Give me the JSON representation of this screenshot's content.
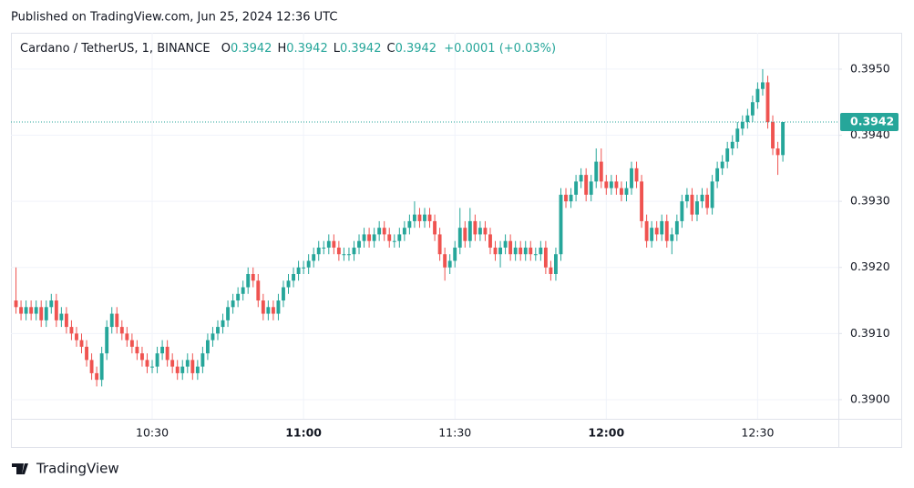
{
  "page": {
    "published": "Published on TradingView.com, Jun 25, 2024 12:36 UTC",
    "brand": "TradingView"
  },
  "chart_data": {
    "type": "candlestick",
    "symbol": "Cardano / TetherUS, 1, BINANCE",
    "ohlc_labels": [
      "O",
      "H",
      "L",
      "C"
    ],
    "ohlc_values": [
      0.3942,
      0.3942,
      0.3942,
      0.3942
    ],
    "change": "+0.0001 (+0.03%)",
    "last_price": 0.3942,
    "up_color": "#26a69a",
    "down_color": "#ef5350",
    "grid": true,
    "xlim": [
      "10:02",
      "12:46"
    ],
    "xticks": [
      "10:30",
      "11:00",
      "11:30",
      "12:00",
      "12:30"
    ],
    "ylim": [
      0.38971,
      0.39555
    ],
    "yticks": [
      {
        "value": 0.39,
        "label": "0.3900"
      },
      {
        "value": 0.391,
        "label": "0.3910"
      },
      {
        "value": 0.392,
        "label": "0.3920"
      },
      {
        "value": 0.393,
        "label": "0.3930"
      },
      {
        "value": 0.394,
        "label": "0.3940"
      },
      {
        "value": 0.395,
        "label": "0.3950"
      }
    ],
    "x": [
      "10:03",
      "10:04",
      "10:05",
      "10:06",
      "10:07",
      "10:08",
      "10:09",
      "10:10",
      "10:11",
      "10:12",
      "10:13",
      "10:14",
      "10:15",
      "10:16",
      "10:17",
      "10:18",
      "10:19",
      "10:20",
      "10:21",
      "10:22",
      "10:23",
      "10:24",
      "10:25",
      "10:26",
      "10:27",
      "10:28",
      "10:29",
      "10:30",
      "10:31",
      "10:32",
      "10:33",
      "10:34",
      "10:35",
      "10:36",
      "10:37",
      "10:38",
      "10:39",
      "10:40",
      "10:41",
      "10:42",
      "10:43",
      "10:44",
      "10:45",
      "10:46",
      "10:47",
      "10:48",
      "10:49",
      "10:50",
      "10:51",
      "10:52",
      "10:53",
      "10:54",
      "10:55",
      "10:56",
      "10:57",
      "10:58",
      "10:59",
      "11:00",
      "11:01",
      "11:02",
      "11:03",
      "11:04",
      "11:05",
      "11:06",
      "11:07",
      "11:08",
      "11:09",
      "11:10",
      "11:11",
      "11:12",
      "11:13",
      "11:14",
      "11:15",
      "11:16",
      "11:17",
      "11:18",
      "11:19",
      "11:20",
      "11:21",
      "11:22",
      "11:23",
      "11:24",
      "11:25",
      "11:26",
      "11:27",
      "11:28",
      "11:29",
      "11:30",
      "11:31",
      "11:32",
      "11:33",
      "11:34",
      "11:35",
      "11:36",
      "11:37",
      "11:38",
      "11:39",
      "11:40",
      "11:41",
      "11:42",
      "11:43",
      "11:44",
      "11:45",
      "11:46",
      "11:47",
      "11:48",
      "11:49",
      "11:50",
      "11:51",
      "11:52",
      "11:53",
      "11:54",
      "11:55",
      "11:56",
      "11:57",
      "11:58",
      "11:59",
      "12:00",
      "12:01",
      "12:02",
      "12:03",
      "12:04",
      "12:05",
      "12:06",
      "12:07",
      "12:08",
      "12:09",
      "12:10",
      "12:11",
      "12:12",
      "12:13",
      "12:14",
      "12:15",
      "12:16",
      "12:17",
      "12:18",
      "12:19",
      "12:20",
      "12:21",
      "12:22",
      "12:23",
      "12:24",
      "12:25",
      "12:26",
      "12:27",
      "12:28",
      "12:29",
      "12:30",
      "12:31",
      "12:32",
      "12:33",
      "12:34",
      "12:35"
    ],
    "ohlc": [
      [
        0.3915,
        0.392,
        0.3913,
        0.3914
      ],
      [
        0.3914,
        0.3915,
        0.3912,
        0.3913
      ],
      [
        0.3913,
        0.3915,
        0.3912,
        0.3914
      ],
      [
        0.3914,
        0.3915,
        0.3912,
        0.3913
      ],
      [
        0.3913,
        0.3915,
        0.3912,
        0.3914
      ],
      [
        0.3914,
        0.3915,
        0.3911,
        0.3912
      ],
      [
        0.3912,
        0.3915,
        0.3911,
        0.3914
      ],
      [
        0.3914,
        0.3916,
        0.3913,
        0.3915
      ],
      [
        0.3915,
        0.3916,
        0.3911,
        0.3912
      ],
      [
        0.3912,
        0.3914,
        0.3911,
        0.3913
      ],
      [
        0.3913,
        0.3914,
        0.391,
        0.3911
      ],
      [
        0.3911,
        0.3912,
        0.3909,
        0.391
      ],
      [
        0.391,
        0.3911,
        0.3908,
        0.3909
      ],
      [
        0.3909,
        0.391,
        0.3907,
        0.3908
      ],
      [
        0.3908,
        0.3909,
        0.3905,
        0.3906
      ],
      [
        0.3906,
        0.3907,
        0.3903,
        0.3904
      ],
      [
        0.3904,
        0.3905,
        0.3902,
        0.3903
      ],
      [
        0.3903,
        0.3908,
        0.3902,
        0.3907
      ],
      [
        0.3907,
        0.3912,
        0.3906,
        0.3911
      ],
      [
        0.3911,
        0.3914,
        0.391,
        0.3913
      ],
      [
        0.3913,
        0.3914,
        0.391,
        0.3911
      ],
      [
        0.3911,
        0.3912,
        0.3909,
        0.391
      ],
      [
        0.391,
        0.3911,
        0.3908,
        0.3909
      ],
      [
        0.3909,
        0.391,
        0.3907,
        0.3908
      ],
      [
        0.3908,
        0.3909,
        0.3906,
        0.3907
      ],
      [
        0.3907,
        0.3908,
        0.3905,
        0.3906
      ],
      [
        0.3906,
        0.3907,
        0.3904,
        0.3905
      ],
      [
        0.3905,
        0.3906,
        0.3904,
        0.3905
      ],
      [
        0.3905,
        0.3908,
        0.3904,
        0.3907
      ],
      [
        0.3907,
        0.3909,
        0.3906,
        0.3908
      ],
      [
        0.3908,
        0.3909,
        0.3905,
        0.3906
      ],
      [
        0.3906,
        0.3907,
        0.3904,
        0.3905
      ],
      [
        0.3905,
        0.3906,
        0.3903,
        0.3904
      ],
      [
        0.3904,
        0.3906,
        0.3903,
        0.3905
      ],
      [
        0.3905,
        0.3907,
        0.3904,
        0.3906
      ],
      [
        0.3906,
        0.3907,
        0.3903,
        0.3904
      ],
      [
        0.3904,
        0.3906,
        0.3903,
        0.3905
      ],
      [
        0.3905,
        0.3908,
        0.3904,
        0.3907
      ],
      [
        0.3907,
        0.391,
        0.3906,
        0.3909
      ],
      [
        0.3909,
        0.3911,
        0.3908,
        0.391
      ],
      [
        0.391,
        0.3912,
        0.3909,
        0.3911
      ],
      [
        0.3911,
        0.3913,
        0.391,
        0.3912
      ],
      [
        0.3912,
        0.3915,
        0.3911,
        0.3914
      ],
      [
        0.3914,
        0.3916,
        0.3913,
        0.3915
      ],
      [
        0.3915,
        0.3917,
        0.3914,
        0.3916
      ],
      [
        0.3916,
        0.3918,
        0.3915,
        0.3917
      ],
      [
        0.3917,
        0.392,
        0.3916,
        0.3919
      ],
      [
        0.3919,
        0.392,
        0.3917,
        0.3918
      ],
      [
        0.3918,
        0.3919,
        0.3914,
        0.3915
      ],
      [
        0.3915,
        0.3916,
        0.3912,
        0.3913
      ],
      [
        0.3913,
        0.3915,
        0.3912,
        0.3914
      ],
      [
        0.3914,
        0.3915,
        0.3912,
        0.3913
      ],
      [
        0.3913,
        0.3916,
        0.3912,
        0.3915
      ],
      [
        0.3915,
        0.3918,
        0.3914,
        0.3917
      ],
      [
        0.3917,
        0.3919,
        0.3916,
        0.3918
      ],
      [
        0.3918,
        0.392,
        0.3917,
        0.3919
      ],
      [
        0.3919,
        0.3921,
        0.3918,
        0.392
      ],
      [
        0.392,
        0.3921,
        0.3919,
        0.392
      ],
      [
        0.392,
        0.3922,
        0.3919,
        0.3921
      ],
      [
        0.3921,
        0.3923,
        0.392,
        0.3922
      ],
      [
        0.3922,
        0.3924,
        0.3921,
        0.3923
      ],
      [
        0.3923,
        0.3924,
        0.3922,
        0.3923
      ],
      [
        0.3923,
        0.3925,
        0.3922,
        0.3924
      ],
      [
        0.3924,
        0.3925,
        0.3922,
        0.3923
      ],
      [
        0.3923,
        0.3924,
        0.3921,
        0.3922
      ],
      [
        0.3922,
        0.3923,
        0.3921,
        0.3922
      ],
      [
        0.3922,
        0.3923,
        0.3921,
        0.3922
      ],
      [
        0.3922,
        0.3924,
        0.3921,
        0.3923
      ],
      [
        0.3923,
        0.3925,
        0.3922,
        0.3924
      ],
      [
        0.3924,
        0.3926,
        0.3923,
        0.3925
      ],
      [
        0.3925,
        0.3926,
        0.3923,
        0.3924
      ],
      [
        0.3924,
        0.3926,
        0.3923,
        0.3925
      ],
      [
        0.3925,
        0.3927,
        0.3924,
        0.3926
      ],
      [
        0.3926,
        0.3927,
        0.3924,
        0.3925
      ],
      [
        0.3925,
        0.3926,
        0.3923,
        0.3924
      ],
      [
        0.3924,
        0.3925,
        0.3923,
        0.3924
      ],
      [
        0.3924,
        0.3926,
        0.3923,
        0.3925
      ],
      [
        0.3925,
        0.3927,
        0.3924,
        0.3926
      ],
      [
        0.3926,
        0.3928,
        0.3925,
        0.3927
      ],
      [
        0.3927,
        0.393,
        0.3926,
        0.3928
      ],
      [
        0.3928,
        0.3929,
        0.3926,
        0.3927
      ],
      [
        0.3927,
        0.3929,
        0.3926,
        0.3928
      ],
      [
        0.3928,
        0.3929,
        0.3926,
        0.3927
      ],
      [
        0.3927,
        0.3928,
        0.3924,
        0.3925
      ],
      [
        0.3925,
        0.3926,
        0.3921,
        0.3922
      ],
      [
        0.3922,
        0.3923,
        0.3918,
        0.392
      ],
      [
        0.392,
        0.3922,
        0.3919,
        0.3921
      ],
      [
        0.3921,
        0.3924,
        0.392,
        0.3923
      ],
      [
        0.3923,
        0.3929,
        0.3922,
        0.3926
      ],
      [
        0.3926,
        0.3927,
        0.3923,
        0.3924
      ],
      [
        0.3924,
        0.3929,
        0.3923,
        0.3927
      ],
      [
        0.3927,
        0.3928,
        0.3924,
        0.3925
      ],
      [
        0.3925,
        0.3927,
        0.3924,
        0.3926
      ],
      [
        0.3926,
        0.3927,
        0.3924,
        0.3925
      ],
      [
        0.3925,
        0.3926,
        0.3922,
        0.3923
      ],
      [
        0.3923,
        0.3924,
        0.3921,
        0.3922
      ],
      [
        0.3922,
        0.3924,
        0.392,
        0.3923
      ],
      [
        0.3923,
        0.3925,
        0.3922,
        0.3924
      ],
      [
        0.3924,
        0.3925,
        0.3921,
        0.3922
      ],
      [
        0.3922,
        0.3924,
        0.3921,
        0.3923
      ],
      [
        0.3923,
        0.3924,
        0.3921,
        0.3922
      ],
      [
        0.3922,
        0.3924,
        0.3921,
        0.3923
      ],
      [
        0.3923,
        0.3924,
        0.3921,
        0.3922
      ],
      [
        0.3922,
        0.3923,
        0.3921,
        0.3922
      ],
      [
        0.3922,
        0.3924,
        0.3921,
        0.3923
      ],
      [
        0.3923,
        0.3924,
        0.3919,
        0.392
      ],
      [
        0.392,
        0.3921,
        0.3918,
        0.3919
      ],
      [
        0.3919,
        0.3923,
        0.3918,
        0.3922
      ],
      [
        0.3922,
        0.3932,
        0.3921,
        0.3931
      ],
      [
        0.3931,
        0.3932,
        0.3929,
        0.393
      ],
      [
        0.393,
        0.3932,
        0.3929,
        0.3931
      ],
      [
        0.3931,
        0.3934,
        0.393,
        0.3933
      ],
      [
        0.3933,
        0.3935,
        0.3932,
        0.3934
      ],
      [
        0.3934,
        0.3935,
        0.393,
        0.3931
      ],
      [
        0.3931,
        0.3934,
        0.393,
        0.3933
      ],
      [
        0.3933,
        0.3938,
        0.3932,
        0.3936
      ],
      [
        0.3936,
        0.3938,
        0.3932,
        0.3933
      ],
      [
        0.3933,
        0.3934,
        0.3931,
        0.3932
      ],
      [
        0.3932,
        0.3934,
        0.3931,
        0.3933
      ],
      [
        0.3933,
        0.3934,
        0.3931,
        0.3932
      ],
      [
        0.3932,
        0.3933,
        0.393,
        0.3931
      ],
      [
        0.3931,
        0.3933,
        0.393,
        0.3932
      ],
      [
        0.3932,
        0.3936,
        0.3931,
        0.3935
      ],
      [
        0.3935,
        0.3936,
        0.3932,
        0.3933
      ],
      [
        0.3933,
        0.3934,
        0.3926,
        0.3927
      ],
      [
        0.3927,
        0.3928,
        0.3923,
        0.3924
      ],
      [
        0.3924,
        0.3927,
        0.3923,
        0.3926
      ],
      [
        0.3926,
        0.3927,
        0.3924,
        0.3925
      ],
      [
        0.3925,
        0.3928,
        0.3924,
        0.3927
      ],
      [
        0.3927,
        0.3928,
        0.3923,
        0.3924
      ],
      [
        0.3924,
        0.3926,
        0.3922,
        0.3925
      ],
      [
        0.3925,
        0.3928,
        0.3924,
        0.3927
      ],
      [
        0.3927,
        0.3931,
        0.3926,
        0.393
      ],
      [
        0.393,
        0.3932,
        0.3929,
        0.3931
      ],
      [
        0.3931,
        0.3932,
        0.3927,
        0.3928
      ],
      [
        0.3928,
        0.3931,
        0.3927,
        0.393
      ],
      [
        0.393,
        0.3932,
        0.3929,
        0.3931
      ],
      [
        0.3931,
        0.3932,
        0.3928,
        0.3929
      ],
      [
        0.3929,
        0.3934,
        0.3928,
        0.3933
      ],
      [
        0.3933,
        0.3936,
        0.3932,
        0.3935
      ],
      [
        0.3935,
        0.3937,
        0.3934,
        0.3936
      ],
      [
        0.3936,
        0.3939,
        0.3935,
        0.3938
      ],
      [
        0.3938,
        0.394,
        0.3937,
        0.3939
      ],
      [
        0.3939,
        0.3942,
        0.3938,
        0.3941
      ],
      [
        0.3941,
        0.3943,
        0.394,
        0.3942
      ],
      [
        0.3942,
        0.3944,
        0.3941,
        0.3943
      ],
      [
        0.3943,
        0.3946,
        0.3942,
        0.3945
      ],
      [
        0.3945,
        0.3948,
        0.3944,
        0.3947
      ],
      [
        0.3947,
        0.395,
        0.3946,
        0.3948
      ],
      [
        0.3948,
        0.3949,
        0.3941,
        0.3942
      ],
      [
        0.3942,
        0.3943,
        0.3937,
        0.3938
      ],
      [
        0.3938,
        0.3939,
        0.3934,
        0.3937
      ],
      [
        0.3937,
        0.3942,
        0.3936,
        0.3942
      ]
    ]
  }
}
